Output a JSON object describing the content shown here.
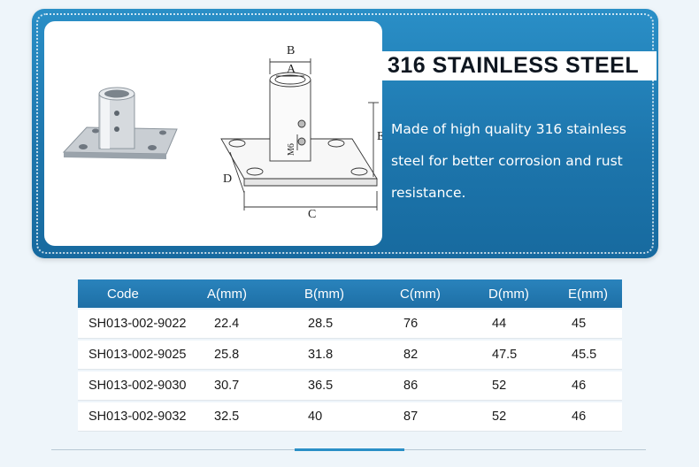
{
  "banner": {
    "heading": "316 STAINLESS STEEL",
    "description": "Made of high quality 316 stainless steel for better corrosion and rust resistance.",
    "diagram_labels": {
      "a": "A",
      "b": "B",
      "c": "C",
      "d": "D",
      "e": "E",
      "thread": "M6"
    }
  },
  "table": {
    "headers": [
      "Code",
      "A(mm)",
      "B(mm)",
      "C(mm)",
      "D(mm)",
      "E(mm)"
    ],
    "rows": [
      [
        "SH013-002-9022",
        "22.4",
        "28.5",
        "76",
        "44",
        "45"
      ],
      [
        "SH013-002-9025",
        "25.8",
        "31.8",
        "82",
        "47.5",
        "45.5"
      ],
      [
        "SH013-002-9030",
        "30.7",
        "36.5",
        "86",
        "52",
        "46"
      ],
      [
        "SH013-002-9032",
        "32.5",
        "40",
        "87",
        "52",
        "46"
      ]
    ]
  },
  "colors": {
    "banner": "#1d76ad",
    "table_header": "#2a83bc",
    "accent": "#2a8fc7"
  }
}
